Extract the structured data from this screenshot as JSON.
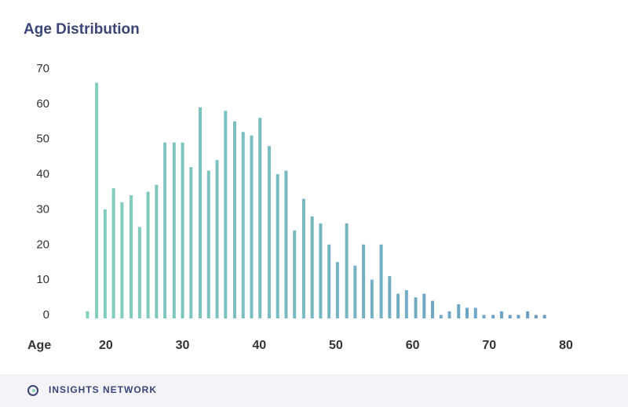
{
  "chart_data": {
    "type": "bar",
    "title": "Age Distribution",
    "x_label": "Age",
    "x": [
      17.6,
      18.8,
      19.9,
      21.0,
      22.1,
      23.3,
      24.4,
      25.5,
      26.6,
      27.7,
      28.9,
      30.0,
      31.1,
      32.3,
      33.4,
      34.5,
      35.6,
      36.8,
      37.9,
      39.0,
      40.1,
      41.3,
      42.4,
      43.5,
      44.6,
      45.8,
      46.9,
      48.0,
      49.1,
      50.2,
      51.4,
      52.5,
      53.6,
      54.7,
      55.9,
      57.0,
      58.1,
      59.2,
      60.4,
      61.5,
      62.6,
      63.7,
      64.8,
      66.0,
      67.1,
      68.2,
      69.3,
      70.5,
      71.6,
      72.7,
      73.8,
      75.0,
      76.1,
      77.2
    ],
    "values": [
      2,
      67,
      31,
      37,
      33,
      35,
      26,
      36,
      38,
      50,
      50,
      50,
      43,
      60,
      42,
      45,
      59,
      56,
      53,
      52,
      57,
      49,
      41,
      42,
      25,
      34,
      29,
      27,
      21,
      16,
      27,
      15,
      21,
      11,
      21,
      12,
      7,
      8,
      6,
      7,
      5,
      1,
      2,
      4,
      3,
      3,
      1,
      1,
      2,
      1,
      1,
      2,
      1,
      1
    ],
    "gradient": [
      "#82cfbd",
      "#6b9cc6"
    ],
    "xlim": [
      15,
      80
    ],
    "xticks": [
      20,
      30,
      40,
      50,
      60,
      70,
      80
    ],
    "ylim": [
      0,
      70
    ],
    "yticks": [
      0,
      10,
      20,
      30,
      40,
      50,
      60,
      70
    ],
    "grid": false
  },
  "footer": {
    "brand": "INSIGHTS NETWORK"
  }
}
